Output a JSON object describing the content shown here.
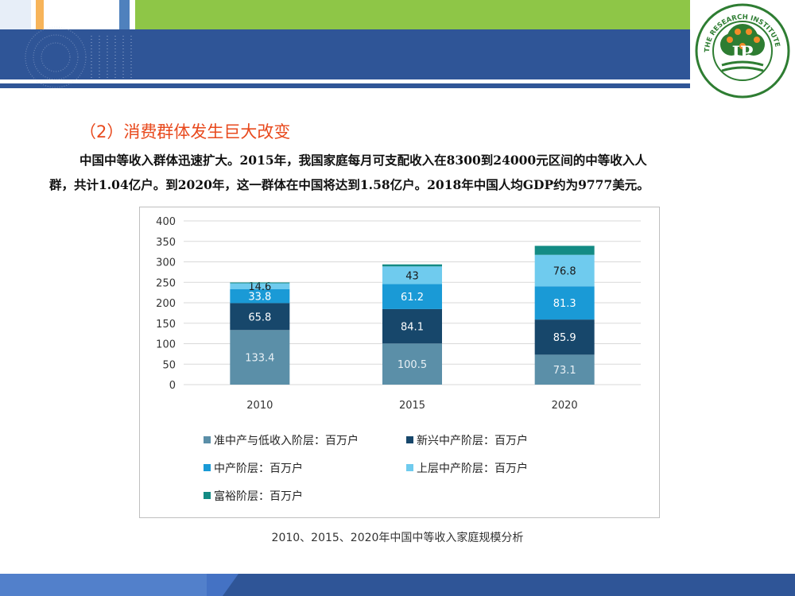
{
  "heading": "（2）消费群体发生巨大改变",
  "paragraph": {
    "line1": "中国中等收入群体迅速扩大。2015年，我国家庭每月可支配收入在8300到24000元区间的中等收入人",
    "line2": "群，共计1.04亿户。到2020年，这一群体在中国将达到1.58亿户。2018年中国人均GDP约为9777美元。"
  },
  "logo": {
    "ring_text": "THE RESEARCH INSTITUTE OF POMOLOGY CAAS",
    "center_text": "IP"
  },
  "caption": "2010、2015、2020年中国中等收入家庭规模分析",
  "colors": {
    "header_blue": "#2f5597",
    "accent_orange": "#f7b45a",
    "accent_green": "#8ec647",
    "heading_red": "#e8491d"
  },
  "chart_data": {
    "type": "bar",
    "stacked": true,
    "categories": [
      "2010",
      "2015",
      "2020"
    ],
    "ylim": [
      0,
      400
    ],
    "yticks": [
      0,
      50,
      100,
      150,
      200,
      250,
      300,
      350,
      400
    ],
    "grid": true,
    "legend_position": "bottom",
    "series": [
      {
        "name": "准中产与低收入阶层：百万户",
        "color": "#5b8fa8",
        "values": [
          133.4,
          100.5,
          73.1
        ],
        "labels": [
          "133.4",
          "100.5",
          "73.1"
        ]
      },
      {
        "name": "新兴中产阶层：百万户",
        "color": "#17476b",
        "values": [
          65.8,
          84.1,
          85.9
        ],
        "labels": [
          "65.8",
          "84.1",
          "85.9"
        ]
      },
      {
        "name": "中产阶层：百万户",
        "color": "#1a9ad6",
        "values": [
          33.8,
          61.2,
          81.3
        ],
        "labels": [
          "33.8",
          "61.2",
          "81.3"
        ]
      },
      {
        "name": "上层中产阶层：百万户",
        "color": "#6fcbee",
        "values": [
          14.6,
          43,
          76.8
        ],
        "labels": [
          "14.6",
          "43",
          "76.8"
        ]
      },
      {
        "name": "富裕阶层：百万户",
        "color": "#138b84",
        "values": [
          2,
          5,
          22
        ],
        "labels": [
          "",
          "",
          ""
        ]
      }
    ]
  }
}
